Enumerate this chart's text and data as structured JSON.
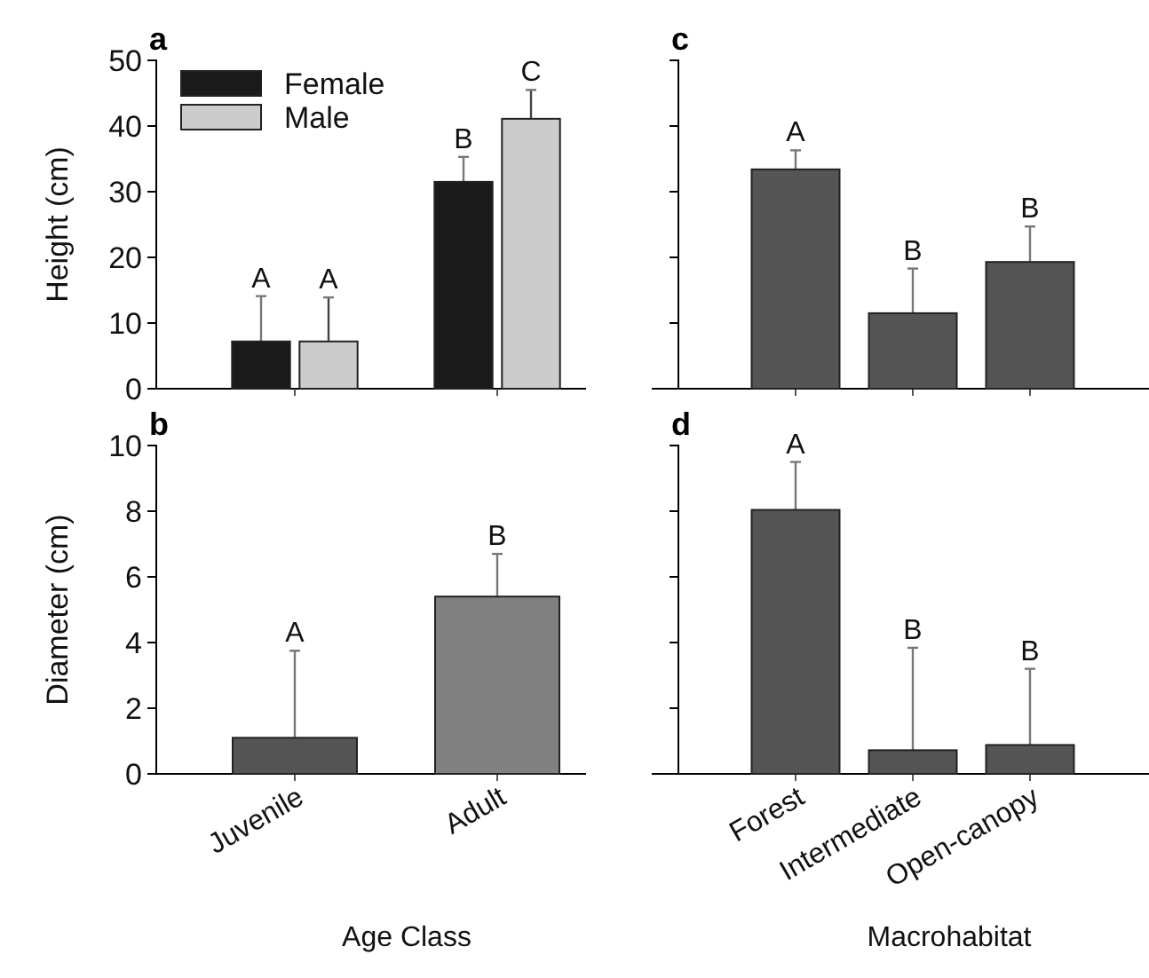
{
  "chart_data": [
    {
      "type": "bar",
      "title": "a",
      "ylabel": "Height (cm)",
      "categories": [
        "Juvenile",
        "Adult"
      ],
      "ylim": [
        0,
        50
      ],
      "yticks": [
        0,
        10,
        20,
        30,
        40,
        50
      ],
      "tick_labels": "y",
      "legend": "top left",
      "series": [
        {
          "name": "Female",
          "color": "#1a1a1a",
          "values": [
            7.2,
            31.5
          ],
          "errors": [
            [
              7.2,
              14.1
            ],
            [
              31.5,
              35.3
            ]
          ]
        },
        {
          "name": "Male",
          "color": "#cccccc",
          "values": [
            7.2,
            41.1
          ],
          "errors": [
            [
              7.2,
              13.9
            ],
            [
              41.1,
              45.5
            ]
          ]
        }
      ],
      "annotations": [
        {
          "text": "A",
          "x": "Juvenile",
          "y": 14.1
        },
        {
          "text": "A",
          "x": "Juvenile",
          "y": 13.9
        },
        {
          "text": "B",
          "x": "Adult",
          "y": 35.3
        },
        "C"
      ]
    },
    {
      "type": "bar",
      "title": "c",
      "categories": [
        "Forest",
        "Intermediate",
        "Open-canopy"
      ],
      "ylim": [
        0,
        50
      ],
      "yticks": [
        0,
        10,
        20,
        30,
        40,
        50
      ],
      "tick_labels": false,
      "values": [
        33.4,
        11.5,
        19.3
      ],
      "colors": [
        "#555555",
        "#555555",
        "#555555"
      ],
      "errors": [
        [
          33.4,
          36.3
        ],
        [
          11.5,
          18.3
        ],
        [
          19.3,
          24.7
        ]
      ],
      "annotations": [
        {
          "text": "A",
          "x": "Forest",
          "y": 36.3
        },
        {
          "text": "B",
          "x": "Intermediate",
          "y": 18.3
        },
        {
          "text": "B",
          "x": "Open-canopy",
          "y": 24.7
        }
      ]
    },
    {
      "type": "bar",
      "title": "b",
      "ylabel": "Diameter (cm)",
      "xlabel": "Age Class",
      "categories": [
        "Juvenile",
        "Adult"
      ],
      "ylim": [
        0,
        10
      ],
      "yticks": [
        0,
        2,
        4,
        6,
        8,
        10
      ],
      "values": [
        1.1,
        5.4
      ],
      "colors": [
        "#555555",
        "#808080"
      ],
      "errors": [
        [
          1.1,
          3.75
        ],
        [
          5.4,
          6.7
        ]
      ],
      "annotations": [
        {
          "text": "A",
          "x": "Juvenile",
          "y": 3.75
        },
        {
          "text": "B",
          "x": "Adult",
          "y": 6.7
        }
      ]
    },
    {
      "type": "bar",
      "title": "d",
      "xlabel": "Macrohabitat",
      "categories": [
        "Forest",
        "Intermediate",
        "Open-canopy"
      ],
      "ylim": [
        0,
        10
      ],
      "yticks": [
        0,
        2,
        4,
        6,
        8,
        10
      ],
      "tick_labels": "x",
      "values": [
        8.04,
        0.72,
        0.88
      ],
      "colors": [
        "#555555",
        "#555555",
        "#555555"
      ],
      "errors": [
        [
          8.04,
          9.5
        ],
        [
          0.72,
          3.84
        ],
        [
          0.88,
          3.2
        ]
      ],
      "annotations": [
        {
          "text": "A",
          "x": "Forest",
          "y": 9.5
        },
        {
          "text": "B",
          "x": "Intermediate",
          "y": 3.84
        },
        {
          "text": "B",
          "x": "Open-canopy",
          "y": 3.2
        }
      ]
    }
  ]
}
